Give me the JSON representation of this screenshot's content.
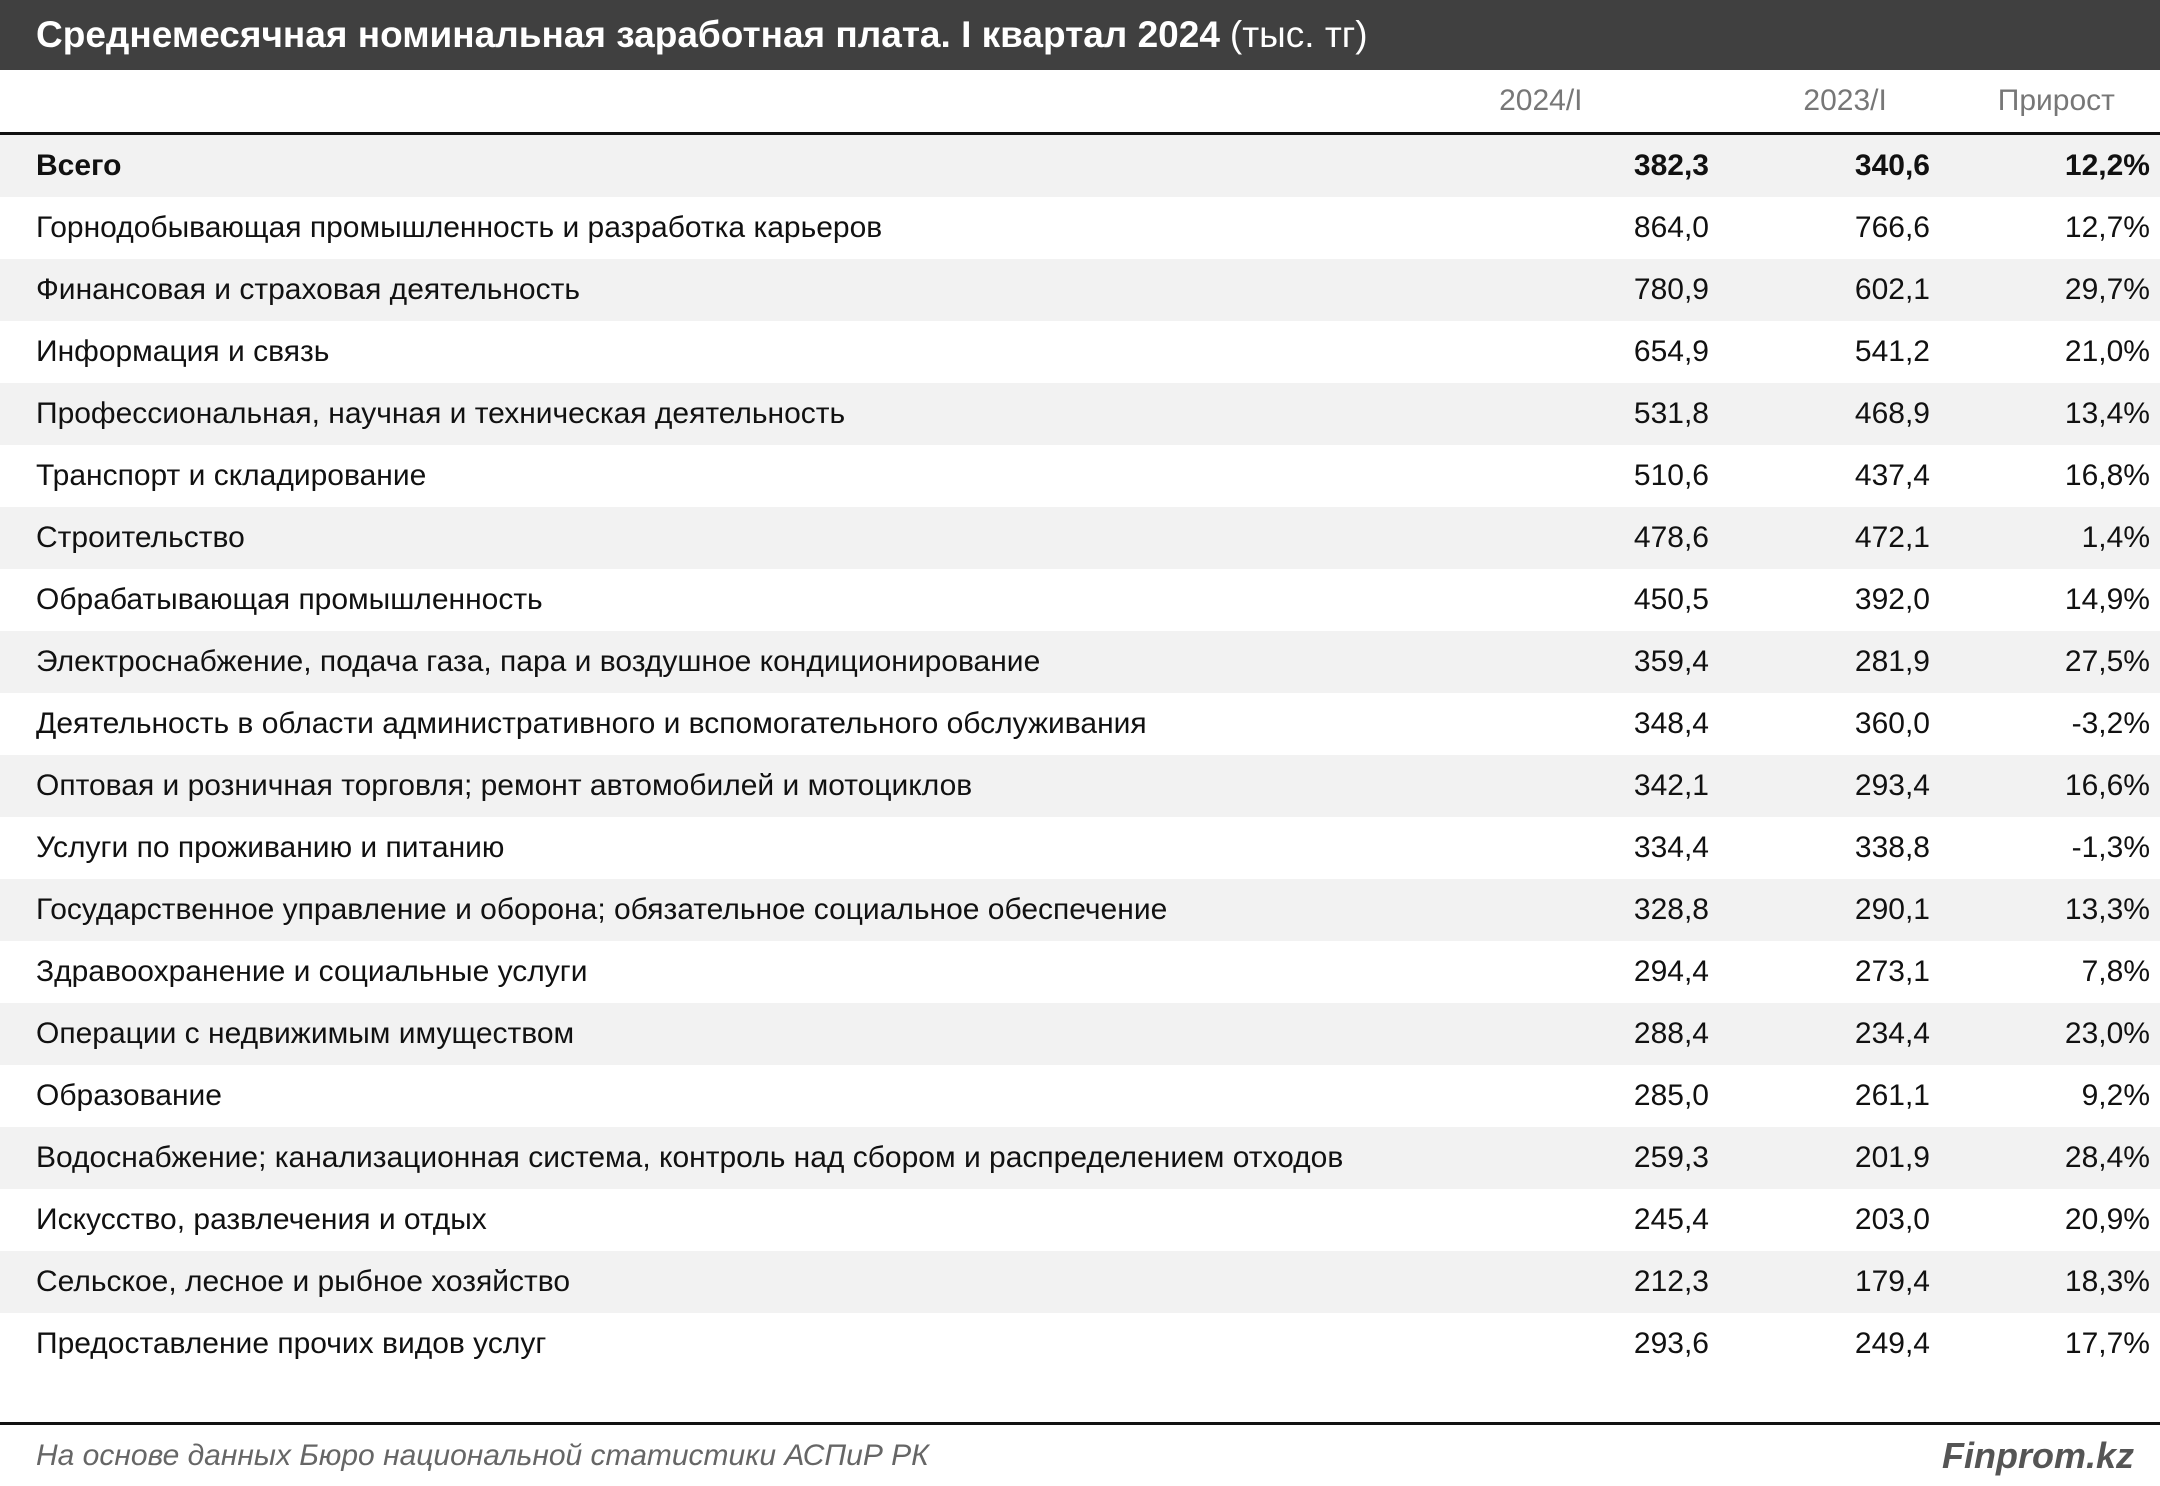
{
  "header": {
    "title": "Среднемесячная номинальная заработная плата. I квартал 2024",
    "unit": "(тыс. тг)"
  },
  "table": {
    "columns": [
      "2024/I",
      "2023/I",
      "Прирост"
    ],
    "rows": [
      [
        "Всего",
        "382,3",
        "340,6",
        "12,2%"
      ],
      [
        "Горнодобывающая промышленность и разработка карьеров",
        "864,0",
        "766,6",
        "12,7%"
      ],
      [
        "Финансовая и страховая деятельность",
        "780,9",
        "602,1",
        "29,7%"
      ],
      [
        "Информация и связь",
        "654,9",
        "541,2",
        "21,0%"
      ],
      [
        "Профессиональная, научная и техническая деятельность",
        "531,8",
        "468,9",
        "13,4%"
      ],
      [
        "Транспорт и складирование",
        "510,6",
        "437,4",
        "16,8%"
      ],
      [
        "Строительство",
        "478,6",
        "472,1",
        "1,4%"
      ],
      [
        "Обрабатывающая промышленность",
        "450,5",
        "392,0",
        "14,9%"
      ],
      [
        "Электроснабжение, подача газа, пара и воздушное кондиционирование",
        "359,4",
        "281,9",
        "27,5%"
      ],
      [
        "Деятельность в области административного и вспомогательного обслуживания",
        "348,4",
        "360,0",
        "-3,2%"
      ],
      [
        "Оптовая и розничная торговля; ремонт автомобилей и мотоциклов",
        "342,1",
        "293,4",
        "16,6%"
      ],
      [
        "Услуги по проживанию и питанию",
        "334,4",
        "338,8",
        "-1,3%"
      ],
      [
        "Государственное управление и оборона; обязательное социальное обеспечение",
        "328,8",
        "290,1",
        "13,3%"
      ],
      [
        "Здравоохранение и социальные услуги",
        "294,4",
        "273,1",
        "7,8%"
      ],
      [
        "Операции с недвижимым имуществом",
        "288,4",
        "234,4",
        "23,0%"
      ],
      [
        "Образование",
        "285,0",
        "261,1",
        "9,2%"
      ],
      [
        "Водоснабжение; канализационная система, контроль над сбором и распределением отходов",
        "259,3",
        "201,9",
        "28,4%"
      ],
      [
        "Искусство, развлечения и отдых",
        "245,4",
        "203,0",
        "20,9%"
      ],
      [
        "Сельское, лесное и рыбное хозяйство",
        "212,3",
        "179,4",
        "18,3%"
      ],
      [
        "Предоставление прочих видов услуг",
        "293,6",
        "249,4",
        "17,7%"
      ]
    ]
  },
  "footer": {
    "source": "На основе данных Бюро национальной статистики АСПиР РК",
    "brand": "Finprom.kz"
  }
}
